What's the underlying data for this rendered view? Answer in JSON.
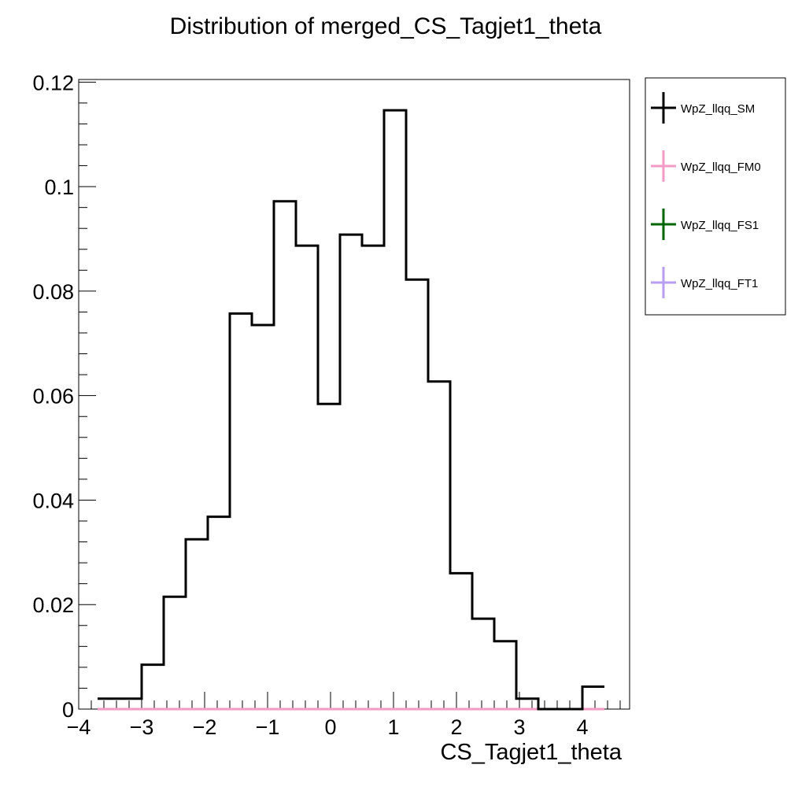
{
  "chart_data": {
    "type": "histogram",
    "title": "Distribution of merged_CS_Tagjet1_theta",
    "xlabel": "CS_Tagjet1_theta",
    "ylabel": "",
    "xlim": [
      -4.0,
      4.75
    ],
    "ylim": [
      0,
      0.1205
    ],
    "x_tick_values": [
      -4,
      -3,
      -2,
      -1,
      0,
      1,
      2,
      3,
      4
    ],
    "x_tick_labels": [
      "−4",
      "−3",
      "−2",
      "−1",
      "0",
      "1",
      "2",
      "3",
      "4"
    ],
    "y_tick_values": [
      0,
      0.02,
      0.04,
      0.06,
      0.08,
      0.1,
      0.12
    ],
    "y_tick_labels": [
      "0",
      "0.02",
      "0.04",
      "0.06",
      "0.08",
      "0.1",
      "0.12"
    ],
    "grid": false,
    "legend_position": "right",
    "bin_edges": [
      -3.7,
      -3.35,
      -3.0,
      -2.65,
      -2.3,
      -1.95,
      -1.6,
      -1.25,
      -0.9,
      -0.55,
      -0.2,
      0.15,
      0.5,
      0.85,
      1.2,
      1.55,
      1.9,
      2.25,
      2.6,
      2.95,
      3.3,
      3.65,
      4.0,
      4.35
    ],
    "series": [
      {
        "name": "WpZ_llqq_SM",
        "color": "#000000",
        "values": [
          0.002,
          0.002,
          0.0085,
          0.0215,
          0.0325,
          0.0368,
          0.0757,
          0.0735,
          0.0972,
          0.0887,
          0.0584,
          0.0908,
          0.0887,
          0.1146,
          0.0822,
          0.0627,
          0.026,
          0.0173,
          0.013,
          0.002,
          0.0,
          0.0,
          0.0043
        ]
      },
      {
        "name": "WpZ_llqq_FM0",
        "color": "#f39ac6",
        "values": [
          0,
          0,
          0,
          0,
          0,
          0,
          0,
          0,
          0,
          0,
          0,
          0,
          0,
          0,
          0,
          0,
          0,
          0,
          0,
          0,
          0,
          0,
          0
        ]
      },
      {
        "name": "WpZ_llqq_FS1",
        "color": "#006400",
        "values": [
          0,
          0,
          0,
          0,
          0,
          0,
          0,
          0,
          0,
          0,
          0,
          0,
          0,
          0,
          0,
          0,
          0,
          0,
          0,
          0,
          0,
          0,
          0
        ]
      },
      {
        "name": "WpZ_llqq_FT1",
        "color": "#b79ef0",
        "values": [
          0,
          0,
          0,
          0,
          0,
          0,
          0,
          0,
          0,
          0,
          0,
          0,
          0,
          0,
          0,
          0,
          0,
          0,
          0,
          0,
          0,
          0,
          0
        ]
      }
    ]
  }
}
